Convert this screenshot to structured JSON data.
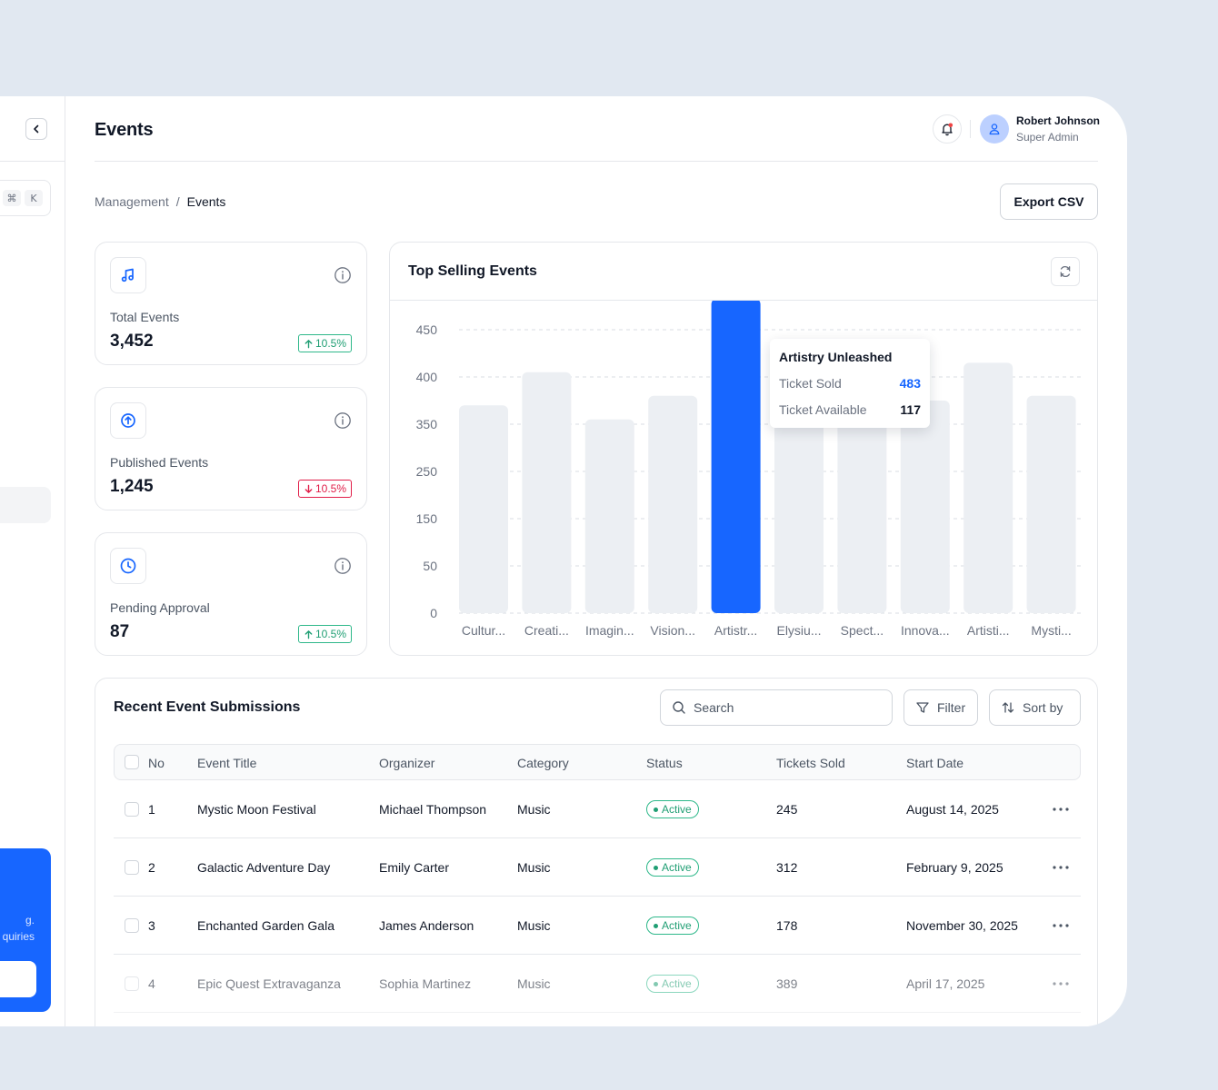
{
  "sidebar": {
    "shortcut_keys": [
      "⌘",
      "K"
    ],
    "promo_text_lines": [
      "g.",
      "quiries"
    ]
  },
  "header": {
    "title": "Events",
    "user": {
      "name": "Robert Johnson",
      "role": "Super Admin"
    },
    "icons": {
      "notification": "bell-icon",
      "avatar": "user-icon",
      "collapse": "chevron-left-icon"
    }
  },
  "breadcrumb": {
    "parent": "Management",
    "separator": "/",
    "current": "Events"
  },
  "actions": {
    "export_label": "Export CSV"
  },
  "stats": [
    {
      "label": "Total Events",
      "value": "3,452",
      "change": "10.5%",
      "trend": "up",
      "icon": "music-note-icon"
    },
    {
      "label": "Published Events",
      "value": "1,245",
      "change": "10.5%",
      "trend": "down",
      "icon": "upload-icon"
    },
    {
      "label": "Pending Approval",
      "value": "87",
      "change": "10.5%",
      "trend": "up",
      "icon": "clock-icon"
    }
  ],
  "colors": {
    "accent": "#1766ff",
    "bar": "#eceff3",
    "positive": "#1f9e73",
    "negative": "#e11d48"
  },
  "chart_data": {
    "type": "bar",
    "title": "Top Selling Events",
    "categories": [
      "Cultur...",
      "Creati...",
      "Imagin...",
      "Vision...",
      "Artistr...",
      "Elysiu...",
      "Spect...",
      "Innova...",
      "Artisti...",
      "Mysti..."
    ],
    "series": [
      {
        "values": [
          370,
          405,
          355,
          380,
          483,
          410,
          405,
          375,
          415,
          380
        ]
      }
    ],
    "y_ticks": [
      "0",
      "50",
      "150",
      "250",
      "350",
      "400",
      "450"
    ],
    "highlight_index": 4,
    "grid": true,
    "tooltip": {
      "title": "Artistry Unleashed",
      "rows": [
        {
          "label": "Ticket Sold",
          "value": "483"
        },
        {
          "label": "Ticket Available",
          "value": "117"
        }
      ]
    }
  },
  "table": {
    "title": "Recent Event Submissions",
    "search_placeholder": "Search",
    "filter_label": "Filter",
    "sort_label": "Sort by",
    "columns": [
      "No",
      "Event Title",
      "Organizer",
      "Category",
      "Status",
      "Tickets Sold",
      "Start Date"
    ],
    "rows": [
      {
        "no": "1",
        "title": "Mystic Moon Festival",
        "organizer": "Michael Thompson",
        "category": "Music",
        "status": "Active",
        "tickets": "245",
        "date": "August 14, 2025"
      },
      {
        "no": "2",
        "title": "Galactic Adventure Day",
        "organizer": "Emily Carter",
        "category": "Music",
        "status": "Active",
        "tickets": "312",
        "date": "February 9, 2025"
      },
      {
        "no": "3",
        "title": "Enchanted Garden Gala",
        "organizer": "James Anderson",
        "category": "Music",
        "status": "Active",
        "tickets": "178",
        "date": "November 30, 2025"
      },
      {
        "no": "4",
        "title": "Epic Quest Extravaganza",
        "organizer": "Sophia Martinez",
        "category": "Music",
        "status": "Active",
        "tickets": "389",
        "date": "April 17, 2025"
      }
    ]
  }
}
